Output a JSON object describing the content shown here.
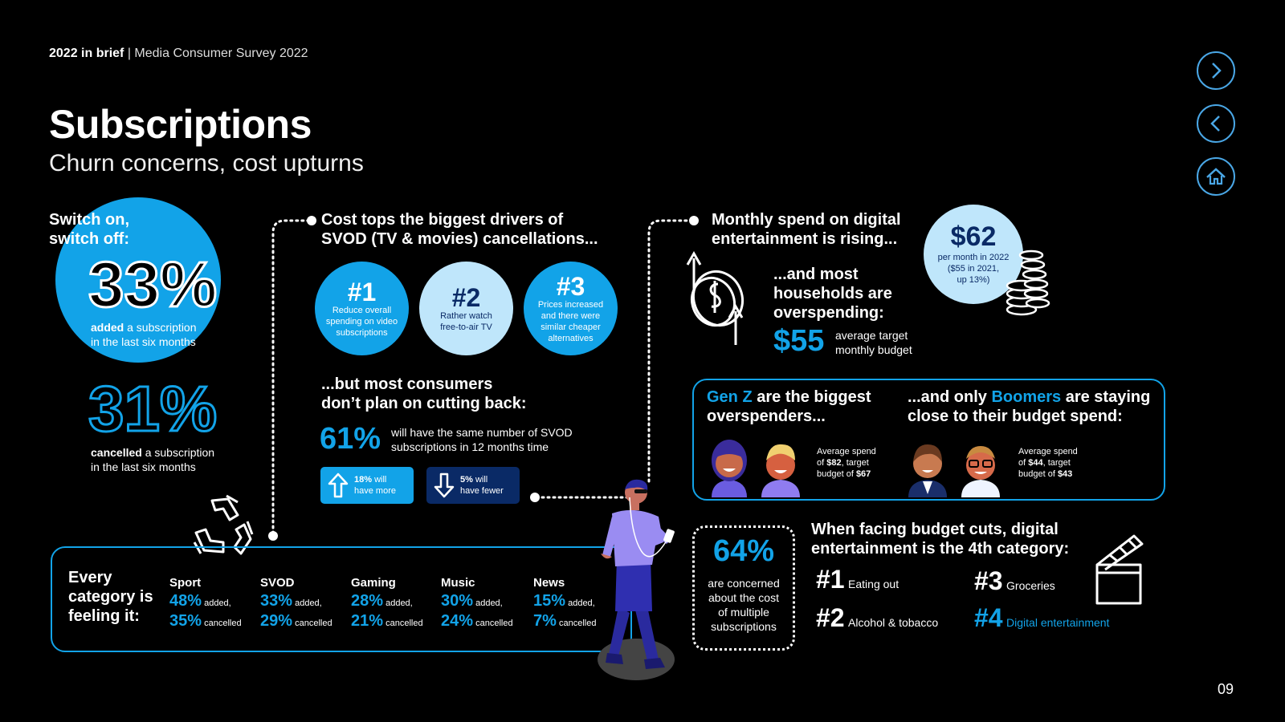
{
  "header": {
    "brand": "2022 in brief",
    "separator": " | ",
    "survey": "Media Consumer Survey 2022"
  },
  "title": "Subscriptions",
  "subtitle": "Churn concerns, cost upturns",
  "nav": {
    "next_icon": "chevron-right-icon",
    "prev_icon": "chevron-left-icon",
    "home_icon": "home-icon"
  },
  "switch": {
    "heading_line1": "Switch on,",
    "heading_line2": "switch off:",
    "added_pct": "33%",
    "added_bold": "added",
    "added_text": " a subscription",
    "added_text2": "in the last six months",
    "cancelled_pct": "31%",
    "cancelled_bold": "cancelled",
    "cancelled_text": " a subscription",
    "cancelled_text2": "in the last six months"
  },
  "drivers": {
    "heading_line1": "Cost tops the biggest drivers of",
    "heading_line2": "SVOD (TV & movies) cancellations...",
    "items": [
      {
        "rank": "#1",
        "text": "Reduce overall spending on video subscriptions"
      },
      {
        "rank": "#2",
        "text": "Rather watch free-to-air TV"
      },
      {
        "rank": "#3",
        "text": "Prices increased and there were similar cheaper alternatives"
      }
    ]
  },
  "cutting": {
    "heading_line1": "...but most consumers",
    "heading_line2": "don’t plan on cutting back:",
    "pct": "61%",
    "text_line1": "will have the same number of SVOD",
    "text_line2": "subscriptions in 12 months time",
    "more_pct": "18%",
    "more_text1": " will",
    "more_text2": "have more",
    "fewer_pct": "5%",
    "fewer_text1": " will",
    "fewer_text2": "have fewer"
  },
  "spend": {
    "heading_line1": "Monthly spend on digital",
    "heading_line2": "entertainment is rising...",
    "amount": "$62",
    "amount_line1": "per month in 2022",
    "amount_line2": "($55 in 2021,",
    "amount_line3": "up 13%)",
    "over_line1": "...and most",
    "over_line2": "households are",
    "over_line3": "overspending:",
    "budget": "$55",
    "budget_line1": "average target",
    "budget_line2": "monthly budget"
  },
  "generations": {
    "genz_name": "Gen Z",
    "genz_rest": " are the biggest",
    "genz_line2": "overspenders...",
    "genz_l1": "Average spend",
    "genz_l2a": "of ",
    "genz_spend": "$82",
    "genz_l2b": ", target",
    "genz_l3a": "budget of ",
    "genz_budget": "$67",
    "boomer_pre": "...and only ",
    "boomer_name": "Boomers",
    "boomer_rest": " are staying",
    "boomer_line2": "close to their budget spend:",
    "boomer_l1": "Average spend",
    "boomer_l2a": "of ",
    "boomer_spend": "$44",
    "boomer_l2b": ", target",
    "boomer_l3a": "budget of ",
    "boomer_budget": "$43"
  },
  "categories": {
    "label_line1": "Every",
    "label_line2": "category is",
    "label_line3": "feeling it:",
    "added_word": " added,",
    "cancelled_word": " cancelled",
    "items": [
      {
        "name": "Sport",
        "added": "48%",
        "cancelled": "35%"
      },
      {
        "name": "SVOD",
        "added": "33%",
        "cancelled": "29%"
      },
      {
        "name": "Gaming",
        "added": "28%",
        "cancelled": "21%"
      },
      {
        "name": "Music",
        "added": "30%",
        "cancelled": "24%"
      },
      {
        "name": "News",
        "added": "15%",
        "cancelled": "7%"
      }
    ]
  },
  "concern": {
    "pct": "64%",
    "line1": "are concerned",
    "line2": "about the cost",
    "line3": "of multiple",
    "line4": "subscriptions"
  },
  "budget_cuts": {
    "heading_line1": "When facing budget cuts, digital",
    "heading_line2": "entertainment is the 4th category:",
    "items": [
      {
        "rank": "#1",
        "label": "Eating out"
      },
      {
        "rank": "#2",
        "label": "Alcohol & tobacco"
      },
      {
        "rank": "#3",
        "label": "Groceries"
      },
      {
        "rank": "#4",
        "label": "Digital entertainment"
      }
    ]
  },
  "page_number": "09",
  "colors": {
    "accent": "#12a3e8",
    "light_blue": "#bfe6fb",
    "navy": "#0a2a66",
    "background": "#000000"
  }
}
